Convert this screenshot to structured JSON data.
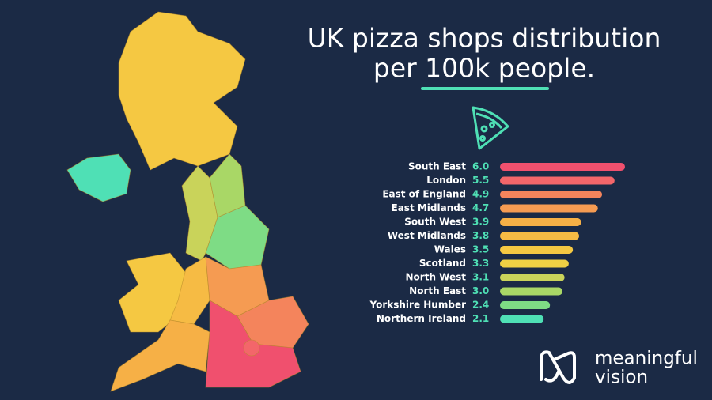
{
  "chart_data": {
    "type": "hbar",
    "title": [
      "UK pizza shops distribution",
      "per 100k people."
    ],
    "categories": [
      "South East",
      "London",
      "East of England",
      "East Midlands",
      "South West",
      "West Midlands",
      "Wales",
      "Scotland",
      "North West",
      "North East",
      "Yorkshire Humber",
      "Northern Ireland"
    ],
    "values": [
      6.0,
      5.5,
      4.9,
      4.7,
      3.9,
      3.8,
      3.5,
      3.3,
      3.1,
      3.0,
      2.4,
      2.1
    ],
    "value_labels": [
      "6.0",
      "5.5",
      "4.9",
      "4.7",
      "3.9",
      "3.8",
      "3.5",
      "3.3",
      "3.1",
      "3.0",
      "2.4",
      "2.1"
    ],
    "colors": [
      "#f0506e",
      "#f3666a",
      "#f4845c",
      "#f59b52",
      "#f6b046",
      "#f6bb44",
      "#f5c842",
      "#efd044",
      "#c9d35a",
      "#a9d766",
      "#7edc85",
      "#4fe0b5"
    ]
  },
  "logo": {
    "lines": [
      "meaningful",
      "vision"
    ]
  }
}
